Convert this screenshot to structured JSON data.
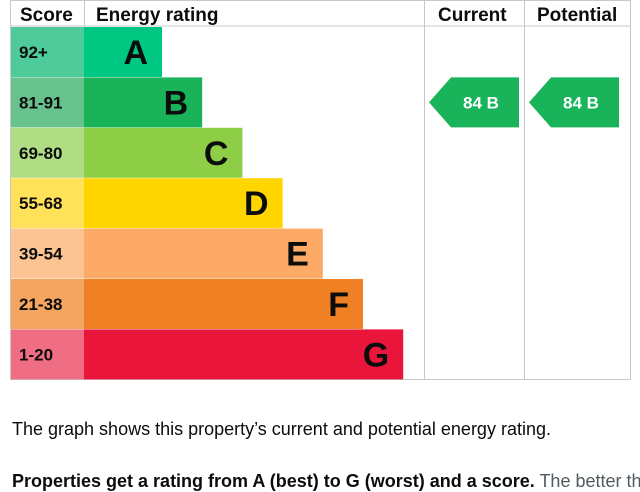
{
  "headers": {
    "score": "Score",
    "rating": "Energy rating",
    "current": "Current",
    "potential": "Potential"
  },
  "chart_data": {
    "type": "bar",
    "title": "Energy rating",
    "bands": [
      {
        "letter": "A",
        "score": "92+",
        "color": "#00c781",
        "score_bg": "#4fcb9b",
        "text_color": "#0b0c0c"
      },
      {
        "letter": "B",
        "score": "81-91",
        "color": "#19b459",
        "score_bg": "#68c28e",
        "text_color": "#0b0c0c"
      },
      {
        "letter": "C",
        "score": "69-80",
        "color": "#8dce46",
        "score_bg": "#b0dc84",
        "text_color": "#0b0c0c"
      },
      {
        "letter": "D",
        "score": "55-68",
        "color": "#ffd500",
        "score_bg": "#ffe15a",
        "text_color": "#0b0c0c"
      },
      {
        "letter": "E",
        "score": "39-54",
        "color": "#fcaa65",
        "score_bg": "#fdc493",
        "text_color": "#0b0c0c"
      },
      {
        "letter": "F",
        "score": "21-38",
        "color": "#ef8023",
        "score_bg": "#f4a660",
        "text_color": "#0b0c0c"
      },
      {
        "letter": "G",
        "score": "1-20",
        "color": "#e9153b",
        "score_bg": "#f06e84",
        "text_color": "#0b0c0c"
      }
    ],
    "current": {
      "value": 84,
      "band": "B",
      "label": "84 B",
      "color": "#19b459"
    },
    "potential": {
      "value": 84,
      "band": "B",
      "label": "84 B",
      "color": "#19b459"
    }
  },
  "caption": "The graph shows this property’s current and potential energy rating.",
  "next_section": {
    "heading": "Properties get a rating from A (best) to G (worst) and a score.",
    "text": "The better the rating and score, the lower your energy bills are likely to be."
  }
}
